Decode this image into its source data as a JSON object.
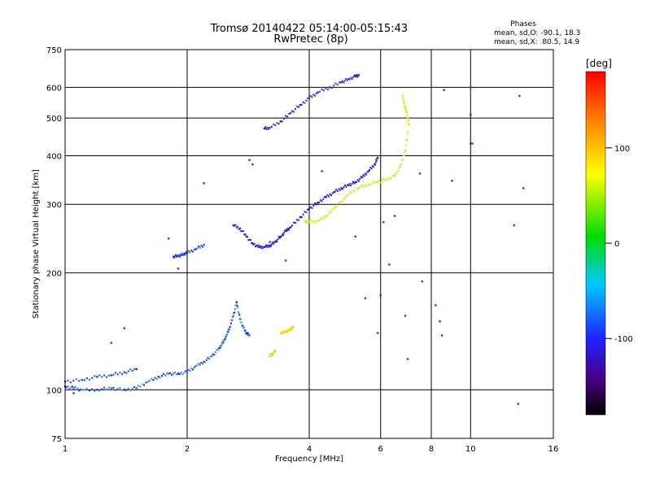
{
  "chart_data": {
    "type": "scatter",
    "title": "Tromsø 20140422 05:14:00-05:15:43",
    "subtitle": "RwPretec (8p)",
    "xlabel": "Frequency [MHz]",
    "ylabel": "Stationary phase Virtual Height [km]",
    "x_scale": "log",
    "y_scale": "log",
    "xlim": [
      1,
      16
    ],
    "ylim": [
      75,
      750
    ],
    "x_ticks": [
      "1",
      "2",
      "4",
      "6",
      "8",
      "10",
      "16"
    ],
    "y_ticks": [
      "75",
      "100",
      "200",
      "300",
      "400",
      "500",
      "600",
      "750"
    ],
    "grid": true,
    "stats": {
      "heading": "Phases",
      "line_o": "mean, sd,O: -90.1, 18.3",
      "line_x": "mean, sd,X:  80.5, 14.9"
    },
    "colorbar": {
      "label": "[deg]",
      "range": [
        -180,
        180
      ],
      "ticks": [
        "100",
        "0",
        "-100"
      ]
    },
    "series": [
      {
        "x": [
          1.0,
          1.05,
          1.1,
          1.2,
          1.3,
          1.4,
          1.5,
          1.6,
          1.7,
          1.8,
          1.9,
          2.0,
          2.1,
          2.2,
          2.3,
          2.4,
          2.45,
          2.5,
          2.55,
          2.6,
          2.65,
          2.7,
          2.75,
          2.8,
          2.85
        ],
        "y": [
          102,
          101,
          100,
          100,
          101,
          100,
          101,
          105,
          108,
          110,
          110,
          111,
          115,
          118,
          122,
          128,
          132,
          138,
          145,
          155,
          168,
          152,
          145,
          140,
          138
        ]
      },
      {
        "x": [
          1.0,
          1.1,
          1.2,
          1.3,
          1.4,
          1.5
        ],
        "y": [
          105,
          106,
          108,
          109,
          111,
          113
        ]
      },
      {
        "x": [
          1.85,
          1.9,
          1.95,
          2.0,
          2.1,
          2.2
        ],
        "y": [
          220,
          221,
          223,
          225,
          230,
          236
        ]
      },
      {
        "x": [
          2.6,
          2.7,
          2.8,
          2.9,
          3.0,
          3.1,
          3.2,
          3.3,
          3.4,
          3.5,
          3.6,
          3.8,
          4.0,
          4.2,
          4.4,
          4.6,
          4.8,
          5.0,
          5.2,
          5.4,
          5.6,
          5.8,
          5.9
        ],
        "y": [
          265,
          260,
          248,
          238,
          233,
          233,
          235,
          240,
          248,
          256,
          262,
          278,
          292,
          303,
          313,
          322,
          330,
          336,
          342,
          352,
          365,
          380,
          395
        ]
      },
      {
        "x": [
          3.1,
          3.2,
          3.4,
          3.6,
          3.8,
          4.0,
          4.2,
          4.5,
          4.8,
          5.0,
          5.2,
          5.3
        ],
        "y": [
          470,
          472,
          490,
          515,
          540,
          562,
          582,
          600,
          618,
          630,
          640,
          645
        ]
      },
      {
        "x": [
          3.9,
          4.0,
          4.2,
          4.4,
          4.6,
          4.8,
          5.0,
          5.3,
          5.6,
          5.9,
          6.2,
          6.5,
          6.7,
          6.9,
          7.0
        ],
        "y": [
          272,
          270,
          272,
          280,
          292,
          305,
          318,
          330,
          338,
          342,
          348,
          355,
          375,
          410,
          460
        ]
      },
      {
        "x": [
          6.8,
          6.85,
          6.9,
          6.95,
          7.0,
          7.05
        ],
        "y": [
          570,
          550,
          530,
          520,
          500,
          480
        ]
      },
      {
        "x": [
          3.4,
          3.5,
          3.6,
          3.65
        ],
        "y": [
          140,
          141,
          143,
          145
        ]
      },
      {
        "x": [
          3.2,
          3.25,
          3.3
        ],
        "y": [
          122,
          124,
          126
        ]
      },
      {
        "x": [
          1.05,
          1.3,
          1.4,
          1.8,
          1.9,
          2.2,
          2.85,
          2.9,
          3.2,
          3.5,
          4.3,
          5.2,
          5.5,
          5.9,
          6.0,
          6.1,
          6.3,
          6.5,
          6.9,
          7.0,
          7.5,
          7.6,
          8.2,
          8.4,
          8.5,
          8.6,
          9.0,
          10.0,
          10.0,
          10.0,
          10.1,
          12.8,
          13.1,
          13.2,
          13.5
        ],
        "y": [
          98,
          132,
          144,
          245,
          205,
          340,
          390,
          380,
          240,
          215,
          365,
          248,
          172,
          140,
          175,
          270,
          210,
          280,
          155,
          120,
          360,
          190,
          165,
          150,
          138,
          590,
          345,
          430,
          600,
          510,
          430,
          265,
          92,
          570,
          330
        ]
      }
    ]
  }
}
